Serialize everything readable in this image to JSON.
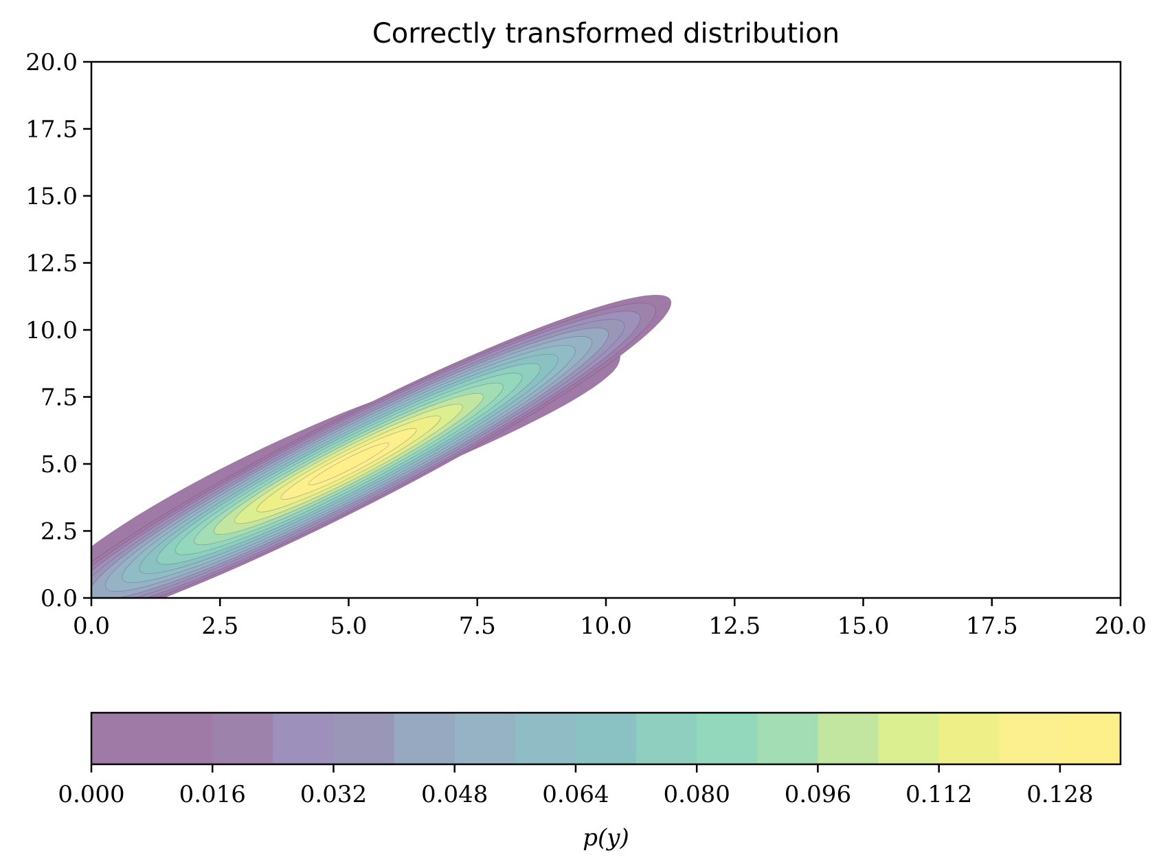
{
  "chart_data": {
    "type": "contourf",
    "title": "Correctly transformed distribution",
    "xlabel": "",
    "ylabel": "",
    "xlim": [
      0,
      20
    ],
    "ylim": [
      0,
      20
    ],
    "xticks": [
      "0.0",
      "2.5",
      "5.0",
      "7.5",
      "10.0",
      "12.5",
      "15.0",
      "17.5",
      "20.0"
    ],
    "yticks": [
      "0.0",
      "2.5",
      "5.0",
      "7.5",
      "10.0",
      "12.5",
      "15.0",
      "17.5",
      "20.0"
    ],
    "grid": false,
    "distribution": {
      "peak_x": 5.0,
      "peak_y": 5.0,
      "peak_density": 0.136,
      "major_axis_slope_deg": 27,
      "level_step": 0.008
    },
    "colorbar": {
      "label": "p(y)",
      "orientation": "horizontal",
      "placement": "bottom",
      "min": 0.0,
      "max": 0.136,
      "tick_labels": [
        "0.000",
        "0.016",
        "0.032",
        "0.048",
        "0.064",
        "0.080",
        "0.096",
        "0.112",
        "0.128"
      ],
      "colors": [
        "#a07aa6",
        "#a07aa6",
        "#9d82ab",
        "#9d91bb",
        "#9996b7",
        "#97a8c1",
        "#95b3c4",
        "#90bcc6",
        "#8ac2c3",
        "#8ecfc0",
        "#93d7bd",
        "#a2ddb3",
        "#c2e6a0",
        "#dcef90",
        "#efef88",
        "#fcf08e",
        "#fdf08a"
      ],
      "alpha": 0.5
    }
  }
}
